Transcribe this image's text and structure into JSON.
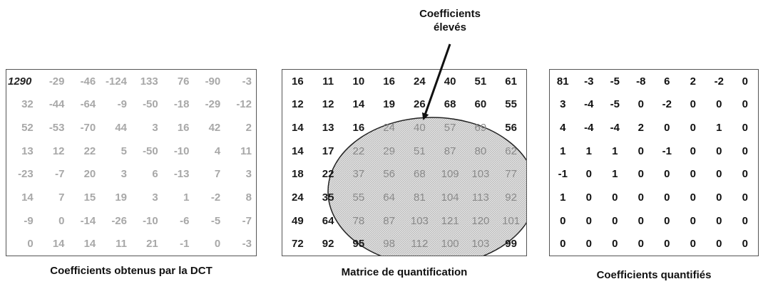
{
  "annotation": {
    "line1": "Coefficients",
    "line2": "élevés"
  },
  "panels": {
    "dct": {
      "caption": "Coefficients obtenus par la DCT",
      "rows": [
        [
          "1290",
          "-29",
          "-46",
          "-124",
          "133",
          "76",
          "-90",
          "-3"
        ],
        [
          "32",
          "-44",
          "-64",
          "-9",
          "-50",
          "-18",
          "-29",
          "-12"
        ],
        [
          "52",
          "-53",
          "-70",
          "44",
          "3",
          "16",
          "42",
          "2"
        ],
        [
          "13",
          "12",
          "22",
          "5",
          "-50",
          "-10",
          "4",
          "11"
        ],
        [
          "-23",
          "-7",
          "20",
          "3",
          "6",
          "-13",
          "7",
          "3"
        ],
        [
          "14",
          "7",
          "15",
          "19",
          "3",
          "1",
          "-2",
          "8"
        ],
        [
          "-9",
          "0",
          "-14",
          "-26",
          "-10",
          "-6",
          "-5",
          "-7"
        ],
        [
          "0",
          "14",
          "14",
          "11",
          "21",
          "-1",
          "0",
          "-3"
        ]
      ]
    },
    "quant": {
      "caption": "Matrice de quantification",
      "rows": [
        [
          "16",
          "11",
          "10",
          "16",
          "24",
          "40",
          "51",
          "61"
        ],
        [
          "12",
          "12",
          "14",
          "19",
          "26",
          "68",
          "60",
          "55"
        ],
        [
          "14",
          "13",
          "16",
          "24",
          "40",
          "57",
          "69",
          "56"
        ],
        [
          "14",
          "17",
          "22",
          "29",
          "51",
          "87",
          "80",
          "62"
        ],
        [
          "18",
          "22",
          "37",
          "56",
          "68",
          "109",
          "103",
          "77"
        ],
        [
          "24",
          "35",
          "55",
          "64",
          "81",
          "104",
          "113",
          "92"
        ],
        [
          "49",
          "64",
          "78",
          "87",
          "103",
          "121",
          "120",
          "101"
        ],
        [
          "72",
          "92",
          "95",
          "98",
          "112",
          "100",
          "103",
          "99"
        ]
      ]
    },
    "result": {
      "caption": "Coefficients quantifiés",
      "rows": [
        [
          "81",
          "-3",
          "-5",
          "-8",
          "6",
          "2",
          "-2",
          "0"
        ],
        [
          "3",
          "-4",
          "-5",
          "0",
          "-2",
          "0",
          "0",
          "0"
        ],
        [
          "4",
          "-4",
          "-4",
          "2",
          "0",
          "0",
          "1",
          "0"
        ],
        [
          "1",
          "1",
          "1",
          "0",
          "-1",
          "0",
          "0",
          "0"
        ],
        [
          "-1",
          "0",
          "1",
          "0",
          "0",
          "0",
          "0",
          "0"
        ],
        [
          "1",
          "0",
          "0",
          "0",
          "0",
          "0",
          "0",
          "0"
        ],
        [
          "0",
          "0",
          "0",
          "0",
          "0",
          "0",
          "0",
          "0"
        ],
        [
          "0",
          "0",
          "0",
          "0",
          "0",
          "0",
          "0",
          "0"
        ]
      ]
    }
  }
}
